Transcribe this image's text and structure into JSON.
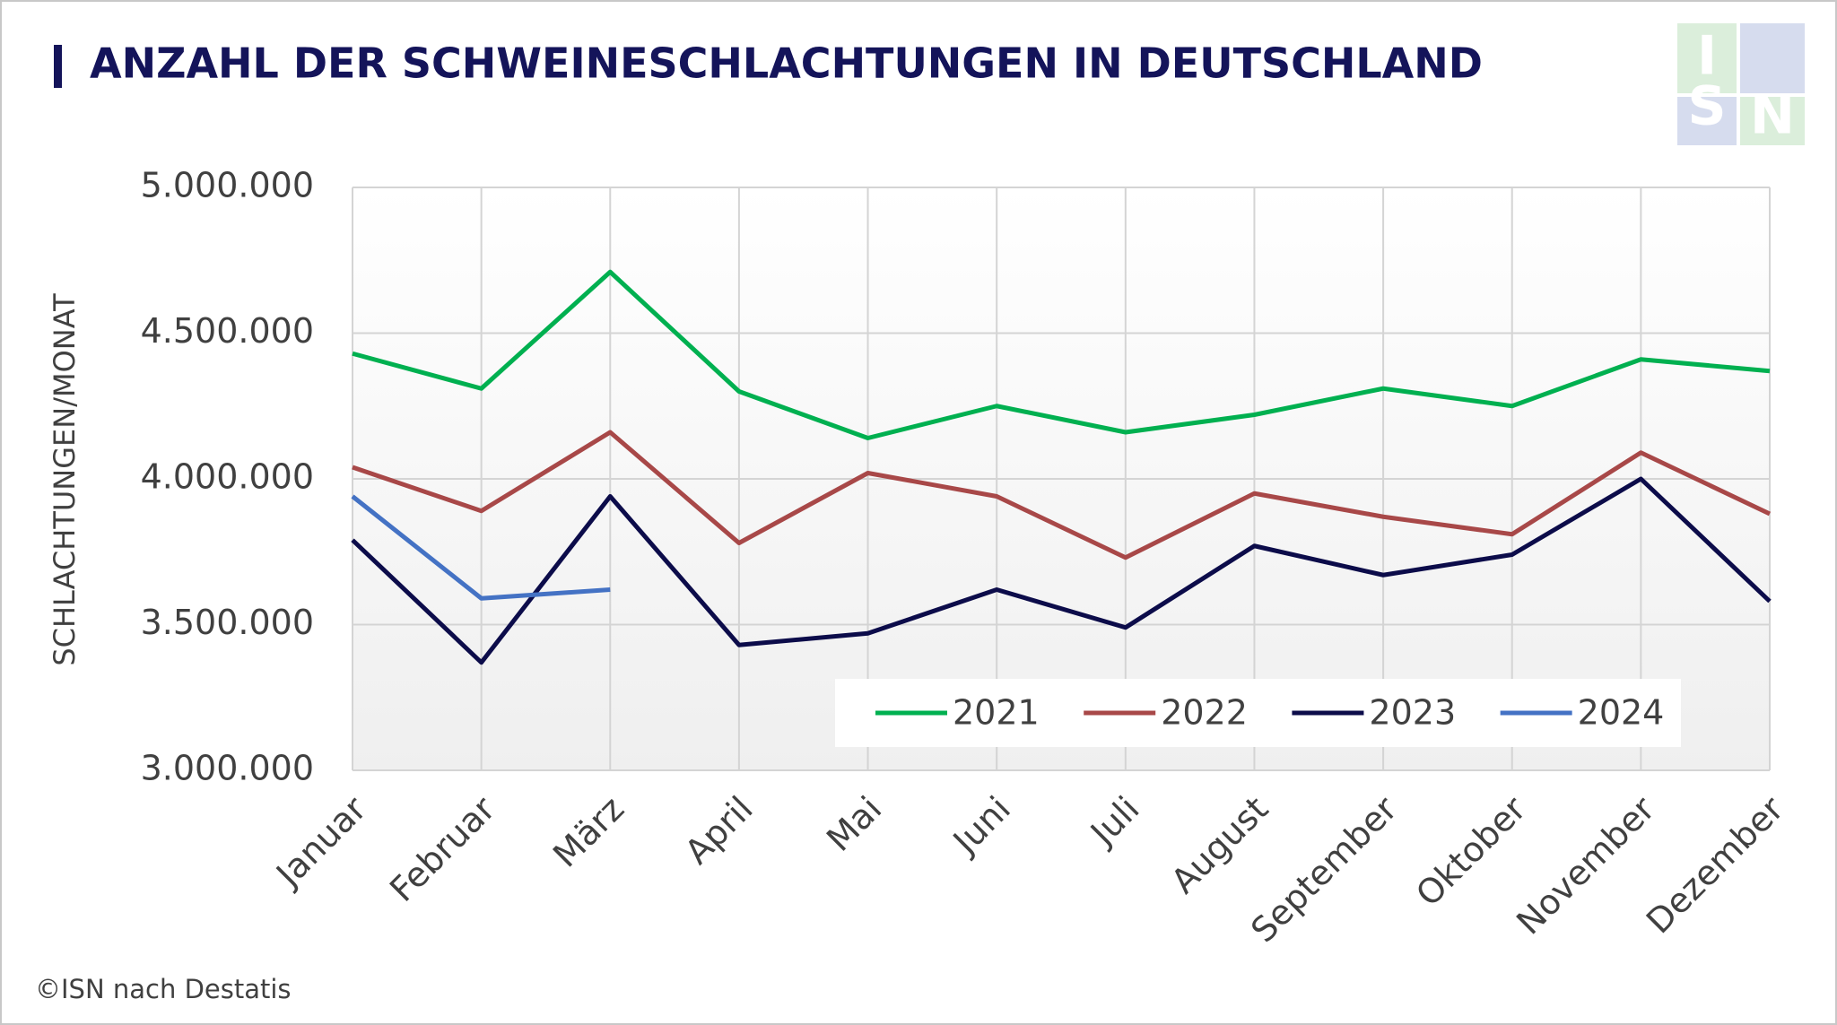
{
  "chart_data": {
    "type": "line",
    "title": "ANZAHL DER SCHWEINESCHLACHTUNGEN IN DEUTSCHLAND",
    "y_label": "SCHLACHTUNGEN/MONAT",
    "source": "©ISN nach Destatis",
    "logo": [
      "I",
      "S",
      "N"
    ],
    "categories": [
      "Januar",
      "Februar",
      "März",
      "April",
      "Mai",
      "Juni",
      "Juli",
      "August",
      "September",
      "Oktober",
      "November",
      "Dezember"
    ],
    "series": [
      {
        "name": "2021",
        "color": "#00b050",
        "values": [
          4430000,
          4310000,
          4710000,
          4300000,
          4140000,
          4250000,
          4160000,
          4220000,
          4310000,
          4250000,
          4410000,
          4370000
        ]
      },
      {
        "name": "2022",
        "color": "#a84848",
        "values": [
          4040000,
          3890000,
          4160000,
          3780000,
          4020000,
          3940000,
          3730000,
          3950000,
          3870000,
          3810000,
          4090000,
          3880000
        ]
      },
      {
        "name": "2023",
        "color": "#0c0c4a",
        "values": [
          3790000,
          3370000,
          3940000,
          3430000,
          3470000,
          3620000,
          3490000,
          3770000,
          3670000,
          3740000,
          4000000,
          3580000
        ]
      },
      {
        "name": "2024",
        "color": "#4472c4",
        "values": [
          3940000,
          3590000,
          3620000,
          null,
          null,
          null,
          null,
          null,
          null,
          null,
          null,
          null
        ]
      }
    ],
    "ylim": [
      3000000,
      5000000
    ],
    "yticks": [
      {
        "value": 3000000,
        "label": "3.000.000"
      },
      {
        "value": 3500000,
        "label": "3.500.000"
      },
      {
        "value": 4000000,
        "label": "4.000.000"
      },
      {
        "value": 4500000,
        "label": "4.500.000"
      },
      {
        "value": 5000000,
        "label": "5.000.000"
      }
    ],
    "grid": true,
    "legend": "bottom-right"
  }
}
